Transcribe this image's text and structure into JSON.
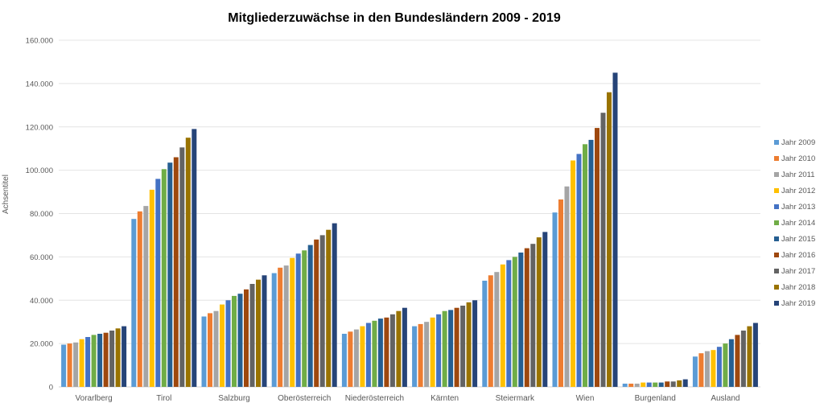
{
  "chart_data": {
    "type": "bar",
    "title": "Mitgliederzuwächse in den Bundesländern 2009 - 2019",
    "xlabel": "",
    "ylabel": "Achsentitel",
    "ylim": [
      0,
      160000
    ],
    "yticks": [
      0,
      20000,
      40000,
      60000,
      80000,
      100000,
      120000,
      140000,
      160000
    ],
    "ytick_labels": [
      "0",
      "20.000",
      "40.000",
      "60.000",
      "80.000",
      "100.000",
      "120.000",
      "140.000",
      "160.000"
    ],
    "grid": true,
    "legend_position": "right",
    "categories": [
      "Vorarlberg",
      "Tirol",
      "Salzburg",
      "Oberösterreich",
      "Niederösterreich",
      "Kärnten",
      "Steiermark",
      "Wien",
      "Burgenland",
      "Ausland"
    ],
    "series": [
      {
        "name": "Jahr 2009",
        "color": "#5b9bd5",
        "values": [
          19500,
          77500,
          32500,
          52500,
          24500,
          28000,
          49000,
          80500,
          1500,
          14000
        ]
      },
      {
        "name": "Jahr 2010",
        "color": "#ed7d31",
        "values": [
          20000,
          81000,
          34000,
          55000,
          25500,
          29000,
          51500,
          86500,
          1500,
          15500
        ]
      },
      {
        "name": "Jahr 2011",
        "color": "#a5a5a5",
        "values": [
          20500,
          83500,
          35000,
          56000,
          26500,
          30000,
          53000,
          92500,
          1500,
          16500
        ]
      },
      {
        "name": "Jahr 2012",
        "color": "#ffc000",
        "values": [
          22000,
          91000,
          38000,
          59500,
          28000,
          32000,
          56500,
          104500,
          2000,
          17000
        ]
      },
      {
        "name": "Jahr 2013",
        "color": "#4472c4",
        "values": [
          23000,
          96000,
          40000,
          61500,
          29500,
          33500,
          58500,
          107500,
          2000,
          18500
        ]
      },
      {
        "name": "Jahr 2014",
        "color": "#70ad47",
        "values": [
          24000,
          100500,
          42000,
          63000,
          30500,
          35000,
          60000,
          112000,
          2000,
          20000
        ]
      },
      {
        "name": "Jahr 2015",
        "color": "#255e91",
        "values": [
          24500,
          103500,
          43000,
          65500,
          31500,
          35500,
          62000,
          114000,
          2000,
          22000
        ]
      },
      {
        "name": "Jahr 2016",
        "color": "#9e480e",
        "values": [
          25000,
          106000,
          45000,
          68000,
          32000,
          36500,
          64000,
          119500,
          2500,
          24000
        ]
      },
      {
        "name": "Jahr 2017",
        "color": "#636363",
        "values": [
          26000,
          110500,
          47500,
          70000,
          33500,
          37500,
          66000,
          126500,
          2500,
          26000
        ]
      },
      {
        "name": "Jahr 2018",
        "color": "#997300",
        "values": [
          27000,
          115000,
          49500,
          72500,
          35000,
          39000,
          69000,
          136000,
          3000,
          28000
        ]
      },
      {
        "name": "Jahr 2019",
        "color": "#264478",
        "values": [
          28000,
          119000,
          51500,
          75500,
          36500,
          40000,
          71500,
          145000,
          3500,
          29500
        ]
      }
    ]
  }
}
